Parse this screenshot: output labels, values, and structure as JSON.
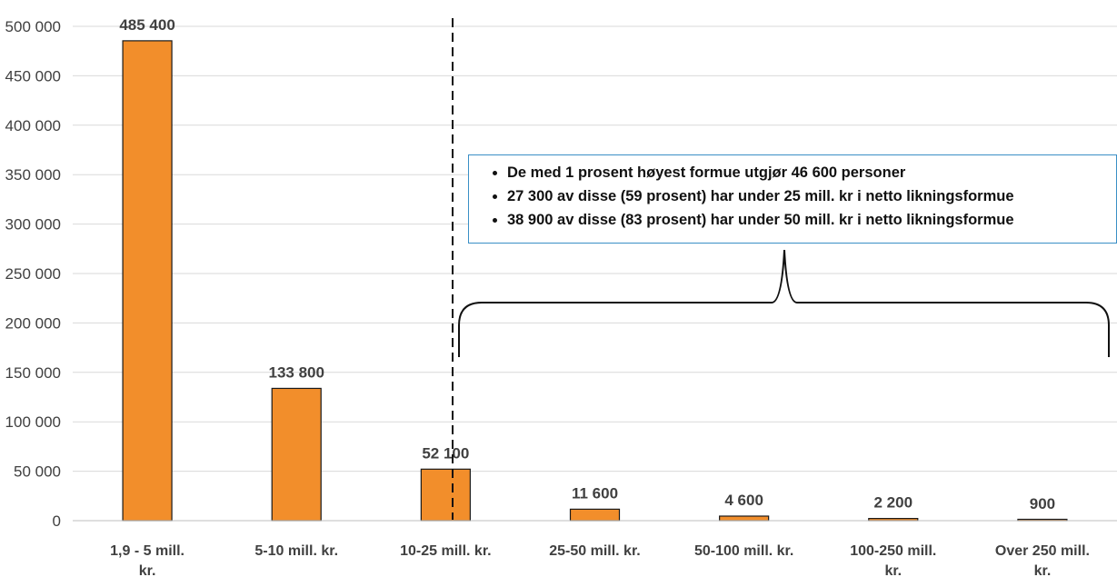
{
  "chart_data": {
    "type": "bar",
    "categories": [
      "1,9 - 5 mill. kr.",
      "5-10 mill. kr.",
      "10-25 mill. kr.",
      "25-50 mill. kr.",
      "50-100 mill. kr.",
      "100-250 mill. kr.",
      "Over 250 mill. kr."
    ],
    "values": [
      485400,
      133800,
      52100,
      11600,
      4600,
      2200,
      900
    ],
    "data_labels": [
      "485 400",
      "133 800",
      "52 100",
      "11 600",
      "4 600",
      "2 200",
      "900"
    ],
    "yticks": [
      "0",
      "50 000",
      "100 000",
      "150 000",
      "200 000",
      "250 000",
      "300 000",
      "350 000",
      "400 000",
      "450 000",
      "500 000"
    ],
    "ylim": [
      0,
      500000
    ],
    "grid": true,
    "bar_color": "#f28e2b",
    "grid_color": "#d9d9d9",
    "annotation": {
      "bullets": [
        "De med 1 prosent høyest formue utgjør 46 600 personer",
        "27 300 av disse (59 prosent) har under 25 mill. kr i netto likningsformue",
        "38 900 av disse (83 prosent) har under 50 mill. kr i netto likningsformue"
      ]
    }
  }
}
